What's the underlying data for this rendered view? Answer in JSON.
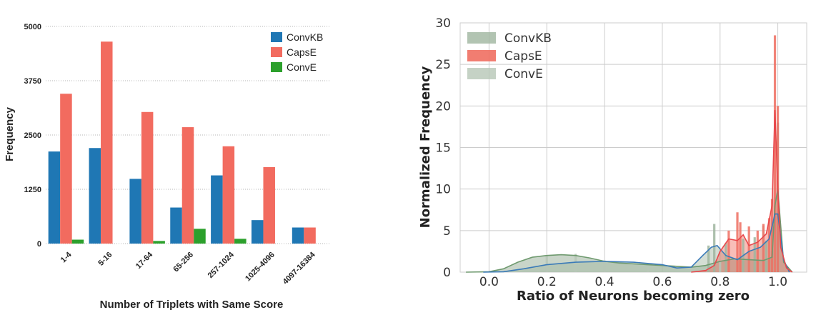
{
  "chart_data": [
    {
      "type": "bar",
      "xlabel": "Number of Triplets with Same Score",
      "ylabel": "Frequency",
      "ylim": [
        0,
        5000
      ],
      "yticks": [
        "0",
        "1250",
        "2500",
        "3750",
        "5000"
      ],
      "grid": "horizontal dotted",
      "legend_position": "top-right",
      "categories": [
        "1-4",
        "5-16",
        "17-64",
        "65-256",
        "257-1024",
        "1025-4096",
        "4097-16384"
      ],
      "series": [
        {
          "name": "ConvKB",
          "color": "#1f77b4",
          "values": [
            2120,
            2200,
            1490,
            830,
            1570,
            540,
            370
          ]
        },
        {
          "name": "CapsE",
          "color": "#f26b5f",
          "values": [
            3450,
            4650,
            3030,
            2680,
            2240,
            1760,
            370
          ]
        },
        {
          "name": "ConvE",
          "color": "#2ca02c",
          "values": [
            90,
            0,
            60,
            340,
            110,
            0,
            0
          ]
        }
      ]
    },
    {
      "type": "area",
      "subtype": "histogram with density curves",
      "xlabel": "Ratio of Neurons becoming zero",
      "ylabel": "Normalized Frequency",
      "xlim": [
        -0.1,
        1.1
      ],
      "ylim": [
        0,
        30
      ],
      "xticks": [
        "0.0",
        "0.2",
        "0.4",
        "0.6",
        "0.8",
        "1.0"
      ],
      "yticks": [
        "0",
        "5",
        "10",
        "15",
        "20",
        "25",
        "30"
      ],
      "grid": "on",
      "legend_position": "top-left",
      "series": [
        {
          "name": "ConvKB",
          "color": "#9fb59f",
          "curve_color": "#3a7ab8",
          "x": [
            -0.02,
            0.05,
            0.12,
            0.2,
            0.3,
            0.4,
            0.5,
            0.6,
            0.65,
            0.7,
            0.74,
            0.77,
            0.79,
            0.82,
            0.86,
            0.9,
            0.94,
            0.97,
            0.99,
            1.0,
            1.02,
            1.04
          ],
          "y": [
            0,
            0.05,
            0.4,
            0.9,
            1.2,
            1.3,
            1.2,
            0.9,
            0.5,
            0.6,
            2.0,
            3.0,
            3.2,
            2.0,
            1.5,
            2.5,
            3.0,
            4.0,
            7.0,
            7.0,
            1.5,
            0
          ]
        },
        {
          "name": "CapsE",
          "color": "#ef6f62",
          "curve_color": "#e8474b",
          "x": [
            0.7,
            0.75,
            0.78,
            0.8,
            0.83,
            0.86,
            0.88,
            0.9,
            0.93,
            0.96,
            0.98,
            0.99,
            1.0,
            1.01,
            1.03,
            1.05
          ],
          "y": [
            0,
            0.2,
            0.8,
            2.5,
            4.0,
            3.8,
            4.5,
            3.2,
            3.6,
            4.6,
            8.0,
            19.5,
            10.0,
            3.0,
            0.5,
            0
          ]
        },
        {
          "name": "ConvE",
          "color": "#b7c7b7",
          "curve_color": "#6f9a6f",
          "x": [
            -0.08,
            0.0,
            0.05,
            0.1,
            0.15,
            0.2,
            0.25,
            0.3,
            0.35,
            0.4,
            0.45,
            0.5,
            0.55,
            0.6,
            0.65,
            0.7,
            0.75,
            0.8,
            0.85,
            0.9,
            0.95,
            0.98,
            0.99,
            1.0,
            1.02,
            1.05
          ],
          "y": [
            0,
            0.05,
            0.4,
            1.2,
            1.8,
            2.0,
            2.1,
            2.0,
            1.7,
            1.3,
            1.1,
            1.0,
            0.9,
            0.8,
            0.7,
            0.6,
            0.8,
            1.3,
            1.6,
            1.5,
            1.4,
            1.8,
            8.0,
            10.0,
            1.2,
            0
          ]
        }
      ],
      "histograms": {
        "ConvKB": {
          "x": [
            0.76,
            0.78,
            0.82,
            0.88,
            0.92,
            0.96,
            0.98,
            1.0
          ],
          "y": [
            3.2,
            5.8,
            3.5,
            4.0,
            4.2,
            3.8,
            2.5,
            18.0
          ]
        },
        "CapsE": {
          "x": [
            0.83,
            0.86,
            0.87,
            0.9,
            0.93,
            0.95,
            0.97,
            0.98,
            0.99,
            1.0
          ],
          "y": [
            5.0,
            7.2,
            6.0,
            5.5,
            5.0,
            5.8,
            6.5,
            8.8,
            28.5,
            20.0
          ]
        },
        "ConvE": {
          "x": [
            0.2,
            0.3,
            0.4,
            0.55,
            0.7,
            0.8,
            0.9,
            0.95,
            0.99,
            1.0
          ],
          "y": [
            2.0,
            2.2,
            1.4,
            1.0,
            0.7,
            1.2,
            2.0,
            5.6,
            9.0,
            6.0
          ]
        }
      }
    }
  ]
}
